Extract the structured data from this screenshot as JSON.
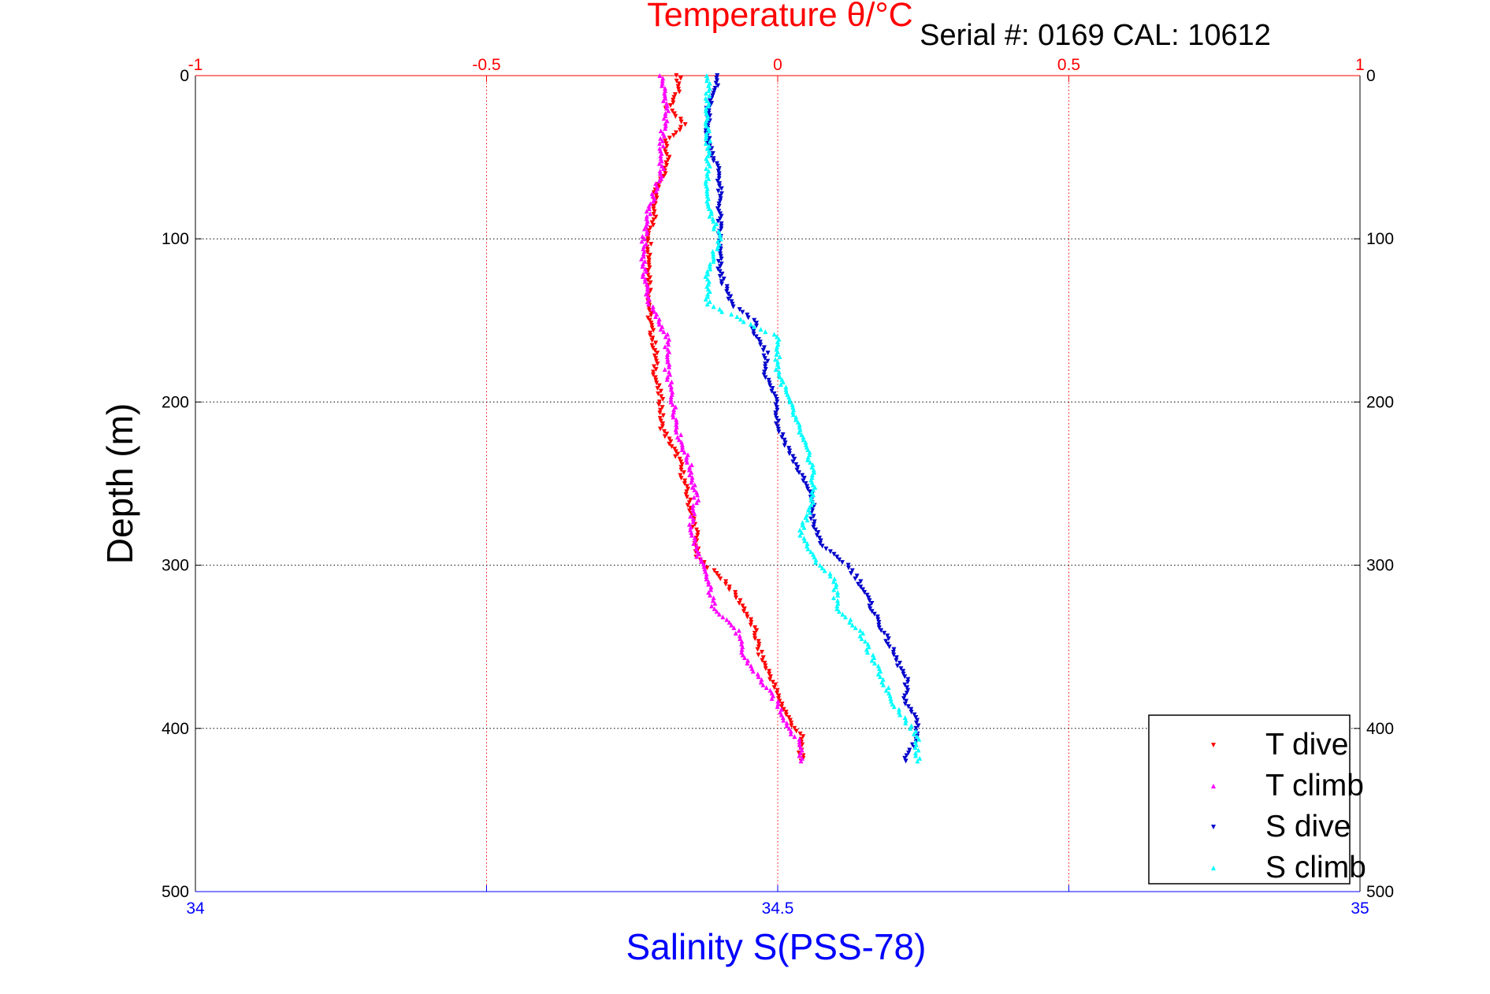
{
  "chart_data": {
    "type": "scatter",
    "title": "Temperature θ/°C",
    "subtitle": "Serial #: 0169 CAL: 10612",
    "ylabel": "Depth (m)",
    "x2label": "Salinity S(PSS-78)",
    "ylim": [
      500,
      0
    ],
    "temperature_axis": {
      "range": [
        -1,
        1
      ],
      "ticks": [
        "-1",
        "-0.5",
        "0",
        "0.5",
        "1"
      ]
    },
    "salinity_axis": {
      "range": [
        34,
        35
      ],
      "ticks": [
        "34",
        "34.5",
        "35"
      ]
    },
    "depth_ticks": [
      "0",
      "100",
      "200",
      "300",
      "400",
      "500"
    ],
    "grid": true,
    "legend_position": "bottom-right",
    "colors": {
      "temperature_axis": "#ff0000",
      "salinity_axis": "#0000ff",
      "t_dive": "#ff0000",
      "t_climb": "#ff00ff",
      "s_dive": "#0000cc",
      "s_climb": "#00ffff"
    },
    "series": [
      {
        "name": "T dive",
        "axis": "temperature",
        "color": "#ff0000",
        "marker": "▾",
        "points": [
          [
            -0.17,
            0
          ],
          [
            -0.17,
            10
          ],
          [
            -0.19,
            20
          ],
          [
            -0.16,
            30
          ],
          [
            -0.19,
            40
          ],
          [
            -0.19,
            55
          ],
          [
            -0.21,
            70
          ],
          [
            -0.21,
            85
          ],
          [
            -0.22,
            95
          ],
          [
            -0.22,
            110
          ],
          [
            -0.22,
            130
          ],
          [
            -0.22,
            150
          ],
          [
            -0.21,
            170
          ],
          [
            -0.21,
            185
          ],
          [
            -0.2,
            200
          ],
          [
            -0.2,
            215
          ],
          [
            -0.17,
            235
          ],
          [
            -0.16,
            250
          ],
          [
            -0.15,
            265
          ],
          [
            -0.14,
            280
          ],
          [
            -0.14,
            295
          ],
          [
            -0.09,
            310
          ],
          [
            -0.06,
            325
          ],
          [
            -0.04,
            340
          ],
          [
            -0.03,
            355
          ],
          [
            -0.01,
            370
          ],
          [
            0,
            380
          ],
          [
            0.02,
            395
          ],
          [
            0.04,
            405
          ],
          [
            0.04,
            420
          ]
        ]
      },
      {
        "name": "T climb",
        "axis": "temperature",
        "color": "#ff00ff",
        "marker": "▴",
        "points": [
          [
            -0.2,
            0
          ],
          [
            -0.19,
            20
          ],
          [
            -0.2,
            40
          ],
          [
            -0.2,
            60
          ],
          [
            -0.22,
            80
          ],
          [
            -0.23,
            100
          ],
          [
            -0.23,
            120
          ],
          [
            -0.22,
            140
          ],
          [
            -0.19,
            160
          ],
          [
            -0.19,
            180
          ],
          [
            -0.18,
            200
          ],
          [
            -0.17,
            220
          ],
          [
            -0.15,
            240
          ],
          [
            -0.14,
            260
          ],
          [
            -0.15,
            275
          ],
          [
            -0.14,
            290
          ],
          [
            -0.12,
            310
          ],
          [
            -0.11,
            325
          ],
          [
            -0.07,
            340
          ],
          [
            -0.06,
            355
          ],
          [
            -0.04,
            365
          ],
          [
            -0.02,
            375
          ],
          [
            0,
            385
          ],
          [
            0.02,
            400
          ],
          [
            0.04,
            410
          ],
          [
            0.04,
            420
          ]
        ]
      },
      {
        "name": "S dive",
        "axis": "salinity",
        "color": "#0000cc",
        "marker": "▾",
        "points": [
          [
            34.45,
            0
          ],
          [
            34.44,
            20
          ],
          [
            34.44,
            40
          ],
          [
            34.45,
            60
          ],
          [
            34.45,
            80
          ],
          [
            34.45,
            100
          ],
          [
            34.45,
            120
          ],
          [
            34.46,
            140
          ],
          [
            34.48,
            150
          ],
          [
            34.48,
            160
          ],
          [
            34.49,
            170
          ],
          [
            34.49,
            185
          ],
          [
            34.5,
            200
          ],
          [
            34.5,
            215
          ],
          [
            34.51,
            230
          ],
          [
            34.52,
            245
          ],
          [
            34.53,
            260
          ],
          [
            34.53,
            275
          ],
          [
            34.54,
            290
          ],
          [
            34.56,
            300
          ],
          [
            34.57,
            310
          ],
          [
            34.58,
            325
          ],
          [
            34.59,
            340
          ],
          [
            34.6,
            355
          ],
          [
            34.61,
            370
          ],
          [
            34.61,
            385
          ],
          [
            34.62,
            395
          ],
          [
            34.62,
            405
          ],
          [
            34.61,
            420
          ]
        ]
      },
      {
        "name": "S climb",
        "axis": "salinity",
        "color": "#00ffff",
        "marker": "▴",
        "points": [
          [
            34.44,
            0
          ],
          [
            34.44,
            20
          ],
          [
            34.44,
            40
          ],
          [
            34.44,
            60
          ],
          [
            34.44,
            80
          ],
          [
            34.45,
            100
          ],
          [
            34.44,
            120
          ],
          [
            34.44,
            140
          ],
          [
            34.5,
            160
          ],
          [
            34.5,
            180
          ],
          [
            34.51,
            200
          ],
          [
            34.52,
            220
          ],
          [
            34.53,
            240
          ],
          [
            34.53,
            260
          ],
          [
            34.52,
            280
          ],
          [
            34.53,
            295
          ],
          [
            34.55,
            310
          ],
          [
            34.55,
            325
          ],
          [
            34.57,
            340
          ],
          [
            34.58,
            355
          ],
          [
            34.59,
            370
          ],
          [
            34.6,
            385
          ],
          [
            34.61,
            395
          ],
          [
            34.62,
            405
          ],
          [
            34.62,
            420
          ]
        ]
      }
    ]
  }
}
